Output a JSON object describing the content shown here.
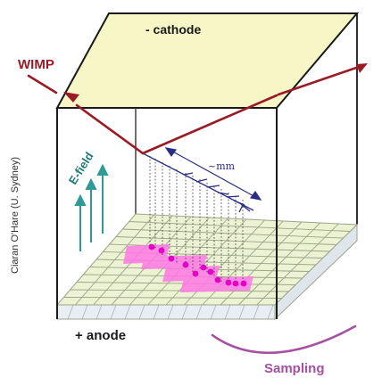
{
  "labels": {
    "cathode": "- cathode",
    "anode": "+ anode",
    "wimp": "WIMP",
    "efield": "E-field",
    "track_scale": "~mm",
    "sampling": "Sampling",
    "credit": "Ciaran O'Hare (U. Sydney)"
  },
  "colors": {
    "background": "#ffffff",
    "cathode_plate": "#f7f6c6",
    "anode_grid_fill": "#edf2d2",
    "anode_grid_lines": "#9aa58a",
    "readout_base": "#e9eef2",
    "wimp_track": "#9a1b25",
    "recoil_track": "#2a2f86",
    "efield_arrows": "#2f9a98",
    "efield_text": "#1f7a78",
    "pixel_hits": "#ff78e6",
    "hit_dots": "#e400c8",
    "sampling_curve": "#a550a0",
    "frame": "#1a1a1a"
  },
  "icons": {
    "efield": "up-arrow-icon",
    "recoil": "branching-track-icon"
  }
}
